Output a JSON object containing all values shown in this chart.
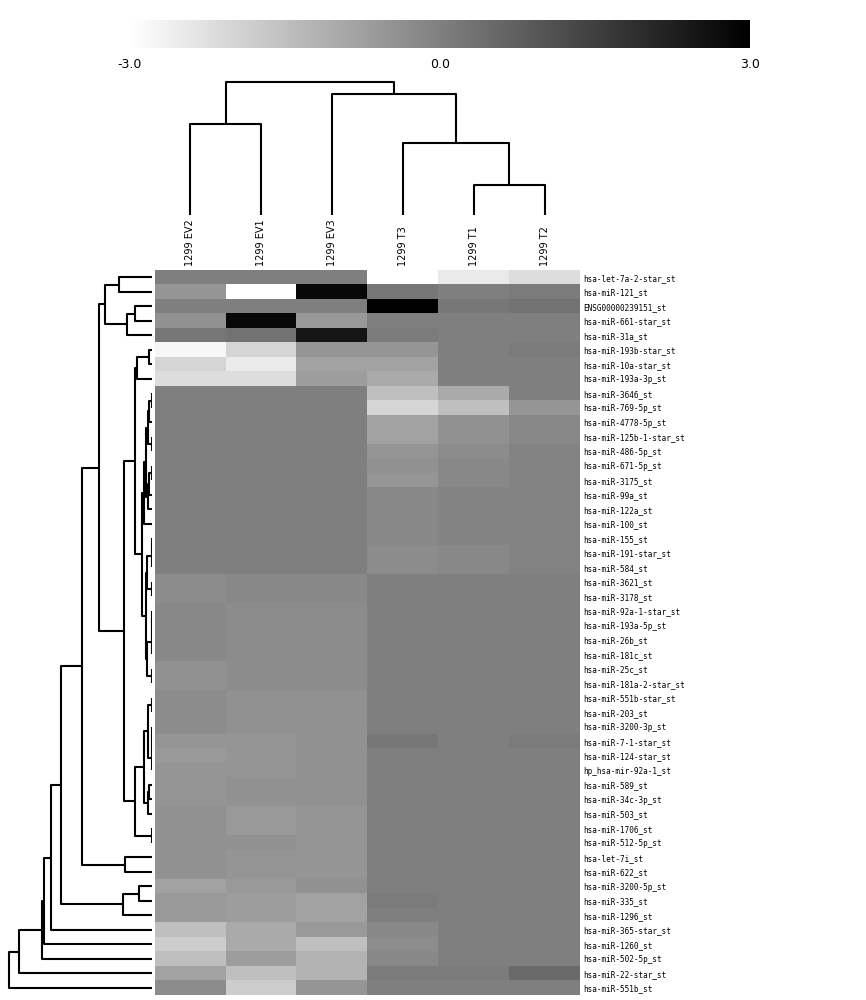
{
  "col_labels": [
    "1299 EV3",
    "1299 EV2",
    "1299 EV1",
    "1299 T3",
    "1299 T1",
    "1299 T2"
  ],
  "col_order": [
    0,
    1,
    2,
    3,
    4,
    5
  ],
  "row_labels": [
    "hsa-miR-22-star_st",
    "hsa-miR-335_st",
    "hsa-miR-121_st",
    "hsa-miR-551b_st",
    "hsa-miR-7-1-star_st",
    "hsa-miR-10a-star_st",
    "hsa-miR-193a-3p_st",
    "hsa-miR-193b-star_st",
    "hsa-miR-365-star_st",
    "hsa-miR-3200-5p_st",
    "hsa-miR-124-star_st",
    "hsa-miR-503_st",
    "hsa-miR-31a_st",
    "hsa-miR-512-5p_st",
    "hp_hsa-mir-92a-1_st",
    "hsa-miR-1706_st",
    "hsa-miR-589_st",
    "hsa-miR-1260_st",
    "hsa-miR-1296_st",
    "hsa-miR-502-5p_st",
    "hsa-miR-661-star_st",
    "hsa-let-7i_st",
    "hsa-miR-203_st",
    "hsa-miR-26b_st",
    "hsa-miR-34c-3p_st",
    "hsa-miR-25c_st",
    "hsa-miR-622_st",
    "hsa-miR-3200-3p_st",
    "hsa-miR-181a-2-star_st",
    "hsa-miR-551b-star_st",
    "hsa-miR-181c_st",
    "hsa-miR-3621_st",
    "hsa-miR-193a-5p_st",
    "hsa-miR-3178_st",
    "hsa-miR-92a-1-star_st",
    "hsa-let-7a-2-star_st",
    "hsa-miR-3646_st",
    "hsa-miR-769-5p_st",
    "ENSG00000239151_st",
    "hsa-miR-4778-5p_st",
    "hsa-miR-125b-1-star_st",
    "hsa-miR-486-5p_st",
    "hsa-miR-671-5p_st",
    "hsa-miR-3175_st",
    "hsa-miR-191-star_st",
    "hsa-miR-584_st",
    "hsa-miR-100_st",
    "hsa-miR-155_st",
    "hsa-miR-122a_st",
    "hsa-miR-99a_st"
  ],
  "heatmap_data": [
    [
      -1.2,
      -0.8,
      -1.5,
      0.1,
      0.1,
      0.5
    ],
    [
      -0.8,
      -0.6,
      -0.7,
      0.1,
      0.0,
      0.0
    ],
    [
      2.8,
      -0.5,
      -3.0,
      0.2,
      0.0,
      0.1
    ],
    [
      -0.5,
      -0.3,
      -1.8,
      0.0,
      0.0,
      0.0
    ],
    [
      -0.4,
      -0.5,
      -0.5,
      0.2,
      0.0,
      0.1
    ],
    [
      -0.8,
      -2.0,
      -2.5,
      -0.8,
      0.0,
      0.0
    ],
    [
      -0.7,
      -2.2,
      -2.2,
      -1.0,
      0.0,
      0.0
    ],
    [
      -0.5,
      -2.8,
      -2.0,
      -0.5,
      0.0,
      0.1
    ],
    [
      -0.6,
      -1.5,
      -1.0,
      -0.2,
      0.0,
      0.0
    ],
    [
      -0.4,
      -0.8,
      -0.6,
      0.0,
      0.0,
      0.0
    ],
    [
      -0.4,
      -0.6,
      -0.5,
      0.0,
      0.0,
      0.0
    ],
    [
      -0.5,
      -0.4,
      -0.6,
      0.0,
      0.0,
      0.0
    ],
    [
      2.5,
      0.2,
      0.3,
      0.1,
      0.0,
      0.0
    ],
    [
      -0.5,
      -0.4,
      -0.4,
      0.0,
      0.0,
      0.0
    ],
    [
      -0.4,
      -0.5,
      -0.5,
      0.0,
      0.0,
      0.0
    ],
    [
      -0.5,
      -0.4,
      -0.6,
      0.0,
      0.0,
      0.0
    ],
    [
      -0.4,
      -0.5,
      -0.4,
      0.0,
      0.0,
      0.0
    ],
    [
      -1.5,
      -1.8,
      -1.0,
      -0.3,
      0.0,
      0.0
    ],
    [
      -0.8,
      -0.6,
      -0.7,
      0.0,
      0.0,
      0.0
    ],
    [
      -1.2,
      -1.5,
      -0.7,
      -0.2,
      0.0,
      0.0
    ],
    [
      -0.6,
      -0.4,
      2.8,
      0.0,
      0.0,
      0.0
    ],
    [
      -0.5,
      -0.4,
      -0.5,
      0.0,
      0.0,
      0.0
    ],
    [
      -0.4,
      -0.3,
      -0.4,
      0.0,
      0.0,
      0.0
    ],
    [
      -0.3,
      -0.2,
      -0.3,
      0.0,
      0.0,
      0.0
    ],
    [
      -0.4,
      -0.5,
      -0.4,
      0.0,
      0.0,
      0.0
    ],
    [
      -0.3,
      -0.4,
      -0.3,
      0.0,
      0.0,
      0.0
    ],
    [
      -0.5,
      -0.4,
      -0.5,
      0.0,
      0.0,
      0.0
    ],
    [
      -0.4,
      -0.3,
      -0.4,
      0.0,
      0.0,
      0.0
    ],
    [
      -0.3,
      -0.4,
      -0.3,
      0.0,
      0.0,
      0.0
    ],
    [
      -0.4,
      -0.3,
      -0.4,
      0.0,
      0.0,
      0.0
    ],
    [
      -0.3,
      -0.2,
      -0.3,
      0.0,
      0.0,
      0.0
    ],
    [
      -0.2,
      -0.3,
      -0.2,
      0.0,
      0.0,
      0.0
    ],
    [
      -0.3,
      -0.2,
      -0.3,
      0.0,
      0.0,
      0.0
    ],
    [
      -0.2,
      -0.3,
      -0.2,
      0.0,
      0.0,
      0.0
    ],
    [
      -0.3,
      -0.2,
      -0.3,
      0.0,
      0.0,
      0.0
    ],
    [
      0.0,
      0.0,
      0.0,
      -3.0,
      -2.5,
      -2.2
    ],
    [
      0.0,
      0.0,
      0.0,
      -1.5,
      -1.0,
      0.0
    ],
    [
      0.0,
      0.0,
      0.0,
      -2.0,
      -1.5,
      -0.5
    ],
    [
      0.0,
      0.0,
      0.0,
      3.0,
      0.2,
      0.3
    ],
    [
      0.0,
      0.0,
      0.0,
      -0.8,
      -0.4,
      -0.2
    ],
    [
      0.0,
      0.0,
      0.0,
      -0.8,
      -0.4,
      -0.2
    ],
    [
      0.0,
      0.0,
      0.0,
      -0.5,
      -0.3,
      -0.1
    ],
    [
      0.0,
      0.0,
      0.0,
      -0.4,
      -0.2,
      -0.1
    ],
    [
      0.0,
      0.0,
      0.0,
      -0.5,
      -0.2,
      -0.1
    ],
    [
      0.0,
      0.0,
      0.0,
      -0.3,
      -0.2,
      -0.1
    ],
    [
      0.0,
      0.0,
      0.0,
      -0.3,
      -0.2,
      -0.1
    ],
    [
      0.0,
      0.0,
      0.0,
      -0.2,
      -0.1,
      -0.1
    ],
    [
      0.0,
      0.0,
      0.0,
      -0.2,
      -0.1,
      -0.1
    ],
    [
      0.0,
      0.0,
      0.0,
      -0.2,
      -0.1,
      -0.1
    ],
    [
      0.0,
      0.0,
      0.0,
      -0.2,
      -0.1,
      -0.1
    ]
  ],
  "colorbar_ticks": [
    -3.0,
    0.0,
    3.0
  ],
  "vmin": -3.0,
  "vmax": 3.0,
  "background_color": "#ffffff",
  "label_fontsize": 5.5,
  "col_label_fontsize": 7.0,
  "colorbar_fontsize": 9
}
